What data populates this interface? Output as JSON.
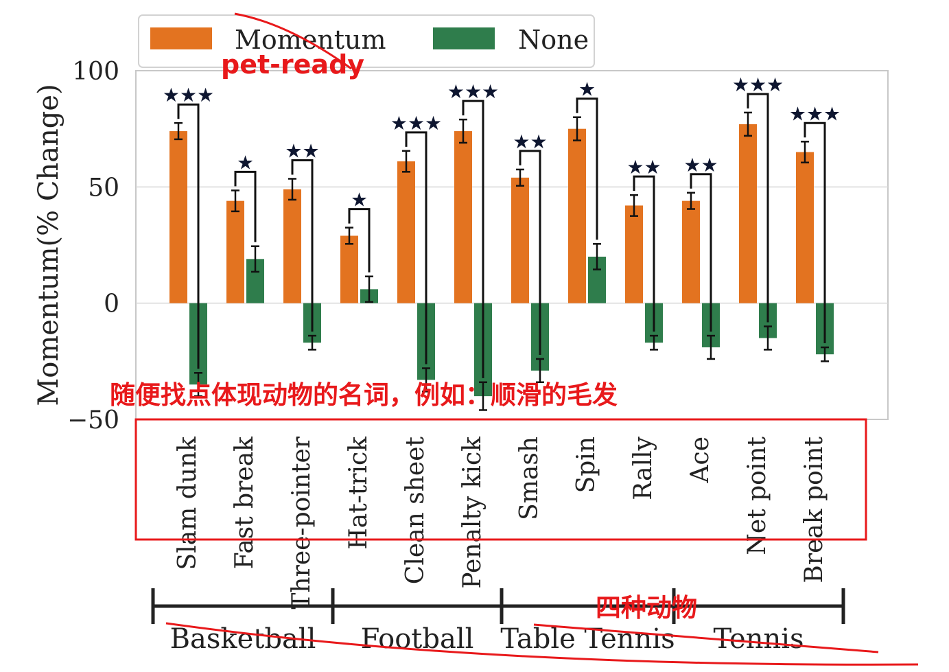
{
  "chart_data": {
    "type": "bar",
    "ylabel": "Momentum(% Change)",
    "ylim": [
      -50,
      100
    ],
    "yticks": [
      {
        "value": 100,
        "label": "100"
      },
      {
        "value": 50,
        "label": "50"
      },
      {
        "value": 0,
        "label": "0"
      },
      {
        "value": -50,
        "label": "−50"
      }
    ],
    "grid": true,
    "legend_position": "top-left",
    "categories": [
      "Slam dunk",
      "Fast break",
      "Three-pointer",
      "Hat-trick",
      "Clean sheet",
      "Penalty kick",
      "Smash",
      "Spin",
      "Rally",
      "Ace",
      "Net point",
      "Break point"
    ],
    "groups": [
      {
        "label": "Basketball",
        "start": 0,
        "end": 2
      },
      {
        "label": "Football",
        "start": 3,
        "end": 5
      },
      {
        "label": "Table Tennis",
        "start": 6,
        "end": 8
      },
      {
        "label": "Tennis",
        "start": 9,
        "end": 11
      }
    ],
    "series": [
      {
        "name": "Momentum",
        "color": "#e37320",
        "values": [
          74,
          44,
          49,
          29,
          61,
          74,
          54,
          75,
          42,
          44,
          77,
          65
        ],
        "errors": [
          3.5,
          4.5,
          4.5,
          3.5,
          4.5,
          5,
          3.5,
          5,
          4.5,
          3.5,
          5,
          4.5
        ]
      },
      {
        "name": "None",
        "color": "#2f7d4c",
        "values": [
          -35,
          19,
          -17,
          6,
          -33,
          -40,
          -29,
          20,
          -17,
          -19,
          -15,
          -22
        ],
        "errors": [
          5,
          5.5,
          3,
          5.5,
          5,
          6,
          5,
          5.5,
          3,
          5,
          5,
          3
        ]
      }
    ],
    "significance": [
      "★★★",
      "★",
      "★★",
      "★",
      "★★★",
      "★★★",
      "★★",
      "★",
      "★★",
      "★★",
      "★★★",
      "★★★"
    ]
  },
  "annotations": {
    "top_label": "pet-ready",
    "middle_label": "随便找点体现动物的名词，例如：顺滑的毛发",
    "bottom_label": "四种动物",
    "color": "#e8191b"
  }
}
